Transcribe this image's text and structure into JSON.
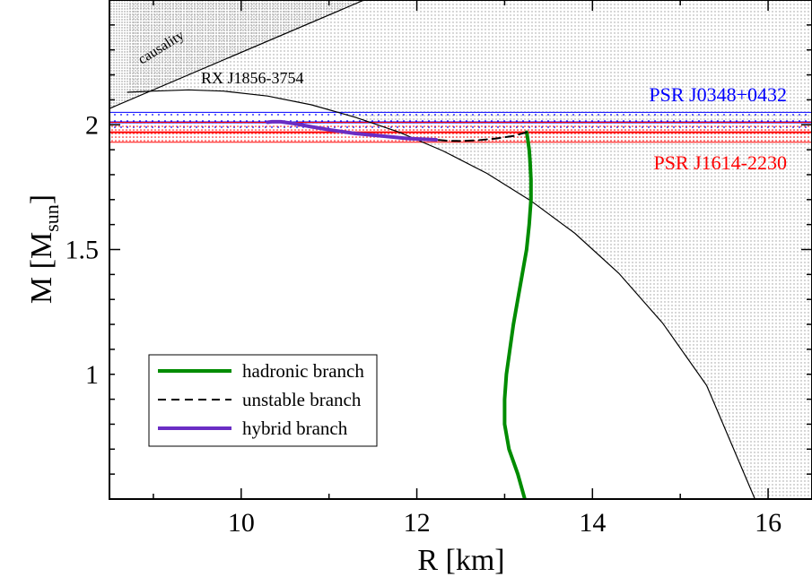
{
  "chart_data": {
    "type": "line",
    "xlabel": "R [km]",
    "ylabel_main": "M [M",
    "ylabel_sub": "sun",
    "ylabel_close": "]",
    "xlim": [
      8.5,
      16.5
    ],
    "ylim": [
      0.5,
      2.5
    ],
    "xticks": [
      {
        "value": 10,
        "label": "10"
      },
      {
        "value": 12,
        "label": "12"
      },
      {
        "value": 14,
        "label": "14"
      },
      {
        "value": 16,
        "label": "16"
      }
    ],
    "yticks": [
      {
        "value": 1,
        "label": "1"
      },
      {
        "value": 1.5,
        "label": "1.5"
      },
      {
        "value": 2,
        "label": "2"
      }
    ],
    "grid": false,
    "legend_position": "lower-left",
    "series": [
      {
        "name": "hadronic branch",
        "color": "#008c00",
        "style": "solid",
        "x": [
          13.23,
          13.15,
          13.05,
          13.0,
          13.0,
          13.02,
          13.06,
          13.1,
          13.15,
          13.2,
          13.25,
          13.28,
          13.3,
          13.3,
          13.29,
          13.28,
          13.26,
          13.25
        ],
        "y": [
          0.5,
          0.6,
          0.7,
          0.8,
          0.9,
          1.0,
          1.1,
          1.2,
          1.3,
          1.4,
          1.5,
          1.6,
          1.7,
          1.78,
          1.85,
          1.9,
          1.95,
          1.97
        ]
      },
      {
        "name": "unstable branch",
        "color": "#000000",
        "style": "dashed",
        "x": [
          13.25,
          13.1,
          12.9,
          12.7,
          12.5,
          12.35,
          12.22
        ],
        "y": [
          1.97,
          1.955,
          1.945,
          1.938,
          1.935,
          1.936,
          1.94
        ]
      },
      {
        "name": "hybrid branch",
        "color": "#6a2dc4",
        "style": "solid",
        "x": [
          12.22,
          11.9,
          11.6,
          11.3,
          11.0,
          10.8,
          10.6,
          10.45,
          10.35,
          10.3
        ],
        "y": [
          1.94,
          1.945,
          1.955,
          1.965,
          1.98,
          1.992,
          2.005,
          2.012,
          2.012,
          2.01
        ]
      }
    ],
    "constraints": [
      {
        "label": "RX J1856-3754",
        "color": "#000000",
        "curve_x": [
          8.7,
          9.0,
          9.4,
          9.8,
          10.3,
          10.8,
          11.3,
          11.8,
          12.3,
          12.8,
          13.3,
          13.8,
          14.3,
          14.8,
          15.3,
          15.85
        ],
        "curve_y": [
          2.13,
          2.135,
          2.14,
          2.135,
          2.115,
          2.08,
          2.03,
          1.97,
          1.895,
          1.805,
          1.695,
          1.565,
          1.405,
          1.205,
          0.955,
          0.5
        ]
      },
      {
        "label": "causality",
        "color": "#000000",
        "x": [
          8.5,
          11.4
        ],
        "y": [
          2.065,
          2.5
        ]
      },
      {
        "label": "PSR J0348+0432",
        "color": "#0000ff",
        "mass": 2.01,
        "band": [
          1.97,
          2.05
        ]
      },
      {
        "label": "PSR J1614-2230",
        "color": "#ff0000",
        "mass": 1.97,
        "band": [
          1.93,
          2.01
        ]
      }
    ]
  }
}
